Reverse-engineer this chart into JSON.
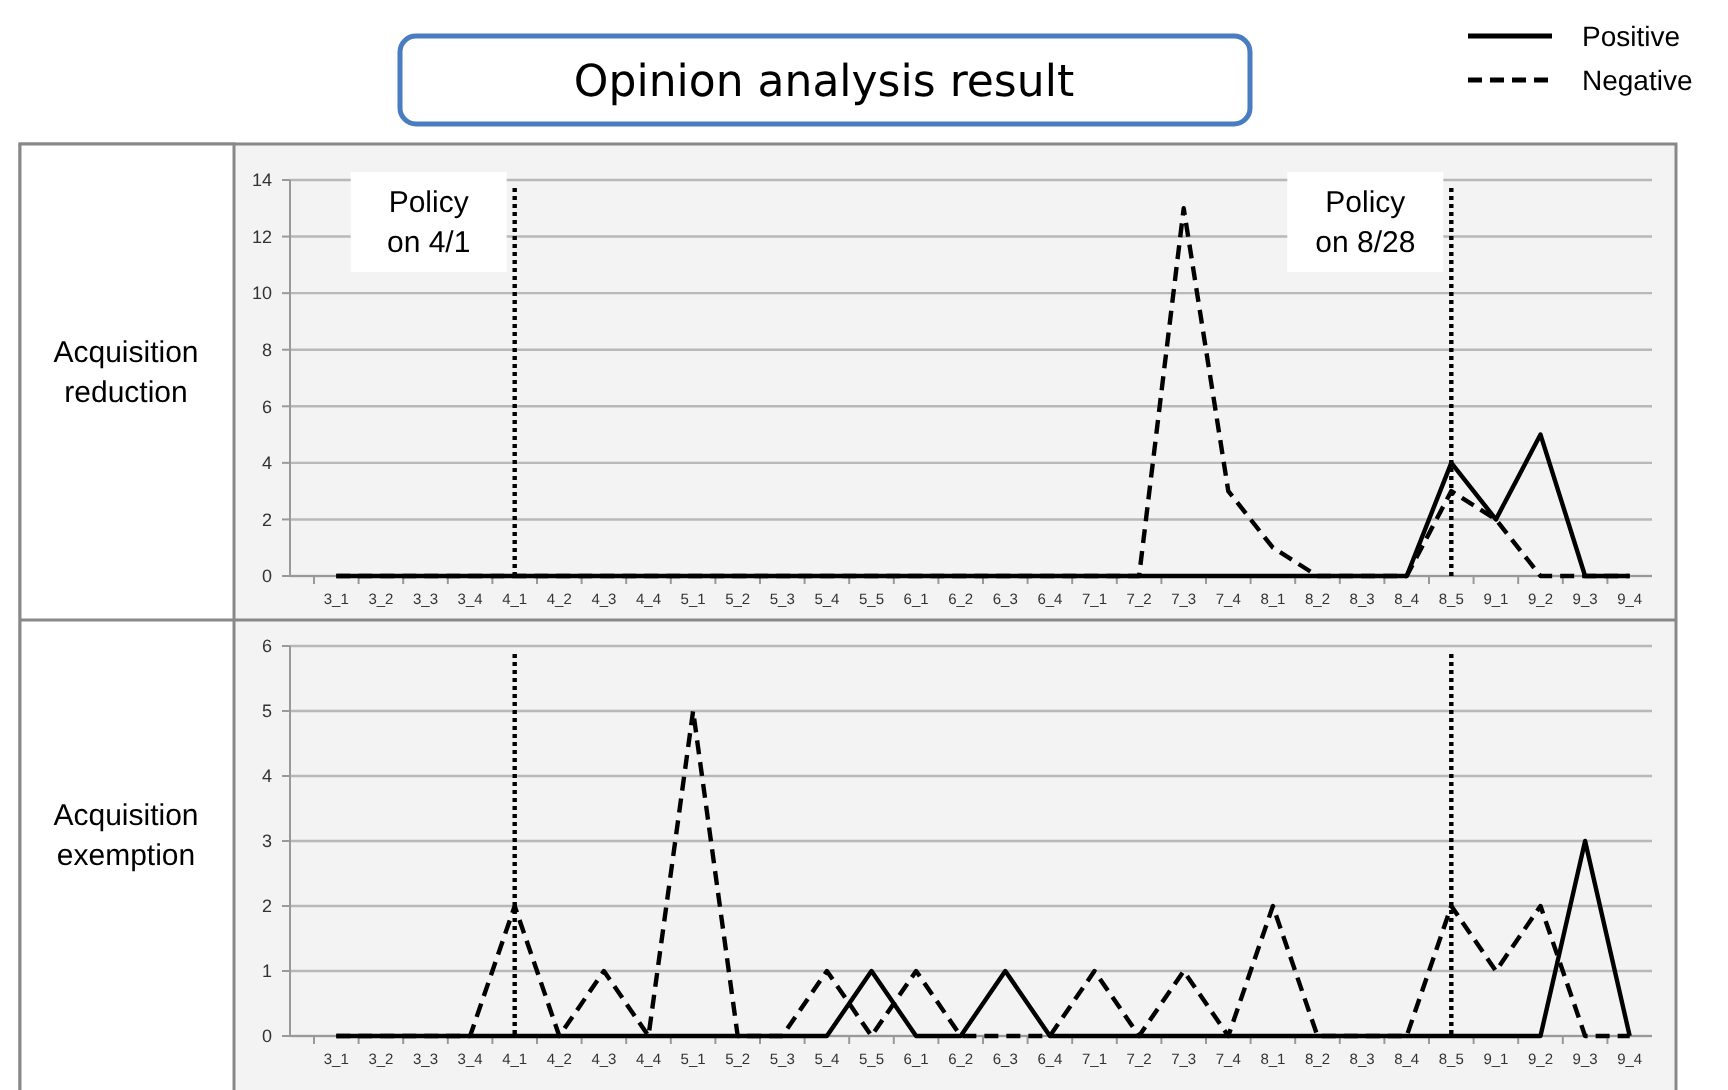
{
  "chart_data": [
    {
      "type": "line",
      "title": "Opinion analysis result",
      "ylabel": "Acquisition reduction",
      "categories": [
        "3_1",
        "3_2",
        "3_3",
        "3_4",
        "4_1",
        "4_2",
        "4_3",
        "4_4",
        "5_1",
        "5_2",
        "5_3",
        "5_4",
        "5_5",
        "6_1",
        "6_2",
        "6_3",
        "6_4",
        "7_1",
        "7_2",
        "7_3",
        "7_4",
        "8_1",
        "8_2",
        "8_3",
        "8_4",
        "8_5",
        "9_1",
        "9_2",
        "9_3",
        "9_4"
      ],
      "series": [
        {
          "name": "Positive",
          "color": "#000000",
          "line_style": "solid",
          "values": [
            0,
            0,
            0,
            0,
            0,
            0,
            0,
            0,
            0,
            0,
            0,
            0,
            0,
            0,
            0,
            0,
            0,
            0,
            0,
            0,
            0,
            0,
            0,
            0,
            0,
            4,
            2,
            5,
            0,
            0
          ]
        },
        {
          "name": "Negative",
          "color": "#000000",
          "line_style": "dashed",
          "values": [
            0,
            0,
            0,
            0,
            0,
            0,
            0,
            0,
            0,
            0,
            0,
            0,
            0,
            0,
            0,
            0,
            0,
            0,
            0,
            13,
            3,
            1,
            0,
            0,
            0,
            3,
            2,
            0,
            0,
            0
          ]
        }
      ],
      "ylim": [
        0,
        14
      ],
      "yticks": [
        0,
        2,
        4,
        6,
        8,
        10,
        12,
        14
      ],
      "grid": "y",
      "legend": "top right",
      "marker": "none",
      "ref_lines": [
        {
          "axis": "x",
          "value": "4_1",
          "label": "Policy on 4/1",
          "color": "#000000",
          "line_style": "dotted"
        },
        {
          "axis": "x",
          "value": "8_5",
          "label": "Policy on 8/28",
          "color": "#000000",
          "line_style": "dotted"
        }
      ]
    },
    {
      "type": "line",
      "ylabel": "Acquisition exemption",
      "categories": [
        "3_1",
        "3_2",
        "3_3",
        "3_4",
        "4_1",
        "4_2",
        "4_3",
        "4_4",
        "5_1",
        "5_2",
        "5_3",
        "5_4",
        "5_5",
        "6_1",
        "6_2",
        "6_3",
        "6_4",
        "7_1",
        "7_2",
        "7_3",
        "7_4",
        "8_1",
        "8_2",
        "8_3",
        "8_4",
        "8_5",
        "9_1",
        "9_2",
        "9_3",
        "9_4"
      ],
      "series": [
        {
          "color": "#000000",
          "line_style": "solid",
          "values": [
            0,
            0,
            0,
            0,
            0,
            0,
            0,
            0,
            0,
            0,
            0,
            0,
            1,
            0,
            0,
            1,
            0,
            0,
            0,
            0,
            0,
            0,
            0,
            0,
            0,
            0,
            0,
            0,
            3,
            0
          ]
        },
        {
          "color": "#000000",
          "line_style": "dashed",
          "values": [
            0,
            0,
            0,
            0,
            2,
            0,
            1,
            0,
            5,
            0,
            0,
            1,
            0,
            1,
            0,
            0,
            0,
            1,
            0,
            1,
            0,
            2,
            0,
            0,
            0,
            2,
            1,
            2,
            0,
            0
          ]
        }
      ],
      "ylim": [
        0,
        6
      ],
      "yticks": [
        0,
        1,
        2,
        3,
        4,
        5,
        6
      ],
      "grid": "y",
      "marker": "none",
      "ref_lines": [
        {
          "axis": "x",
          "value": "4_1",
          "color": "#000000",
          "line_style": "dotted"
        },
        {
          "axis": "x",
          "value": "8_5",
          "color": "#000000",
          "line_style": "dotted"
        }
      ]
    }
  ]
}
